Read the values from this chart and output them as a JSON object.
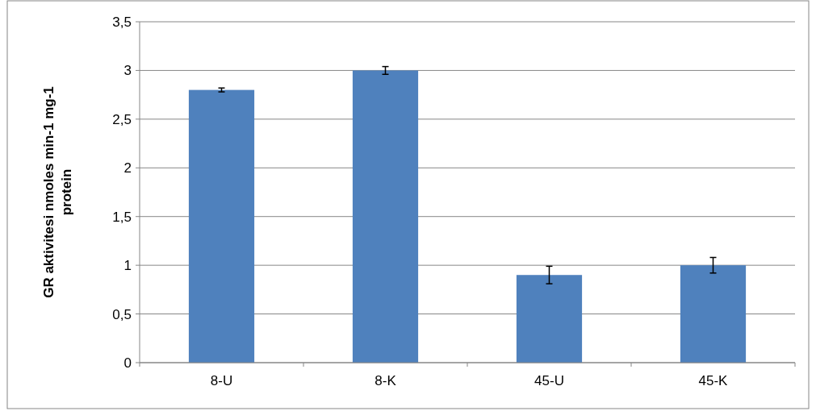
{
  "chart_data": {
    "type": "bar",
    "ylabel": "GR aktivitesi nmoles min-1 mg-1 protein",
    "categories": [
      "8-U",
      "8-K",
      "45-U",
      "45-K"
    ],
    "values": [
      2.8,
      3.0,
      0.9,
      1.0
    ],
    "errors": [
      0.02,
      0.04,
      0.09,
      0.08
    ],
    "color": "#4f81bd",
    "ylim": [
      0,
      3.5
    ],
    "yticks": [
      0,
      {
        "value": 0.5,
        "label": "0,5"
      },
      1,
      {
        "value": 1.5,
        "label": "1,5"
      },
      2,
      {
        "value": 2.5,
        "label": "2,5"
      },
      3,
      {
        "value": 3.5,
        "label": "3,5"
      }
    ],
    "grid": "y"
  }
}
